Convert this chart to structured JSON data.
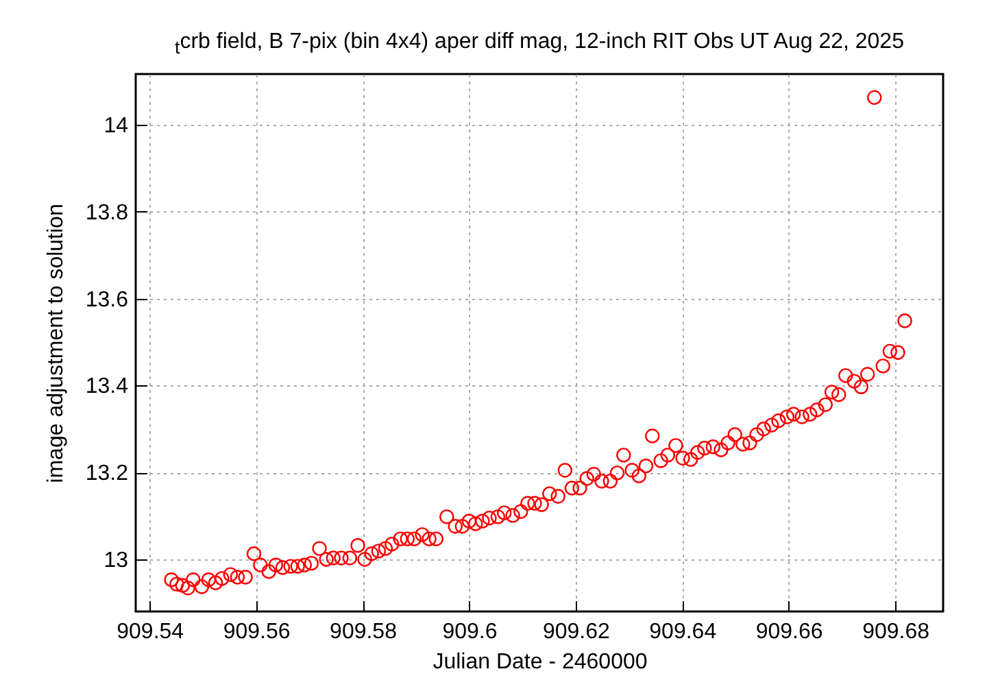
{
  "chart_data": {
    "type": "scatter",
    "title": "$_{t}$crb field, B 7-pix (bin 4x4) aper diff mag,  12-inch RIT Obs UT Aug 22, 2025",
    "xlabel": "Julian Date - 2460000",
    "ylabel": "image adjustment to solution",
    "xlim": [
      909.5374,
      909.689
    ],
    "ylim": [
      12.88,
      14.117
    ],
    "xticks": [
      909.54,
      909.56,
      909.58,
      909.6,
      909.62,
      909.64,
      909.66,
      909.68
    ],
    "yticks": [
      13,
      13.2,
      13.4,
      13.6,
      13.8,
      14
    ],
    "grid": true,
    "marker": "circle",
    "series": [
      {
        "color": "#ff0000",
        "x": [
          909.5441,
          909.5451,
          909.5462,
          909.5472,
          909.5482,
          909.5498,
          909.5511,
          909.5524,
          909.5536,
          909.5552,
          909.5565,
          909.558,
          909.5596,
          909.5608,
          909.5624,
          909.5637,
          909.565,
          909.5665,
          909.5678,
          909.5691,
          909.5704,
          909.5719,
          909.5732,
          909.5745,
          909.576,
          909.5776,
          909.5791,
          909.5804,
          909.5817,
          909.583,
          909.5843,
          909.5855,
          909.5871,
          909.5884,
          909.5897,
          909.5912,
          909.5925,
          909.5938,
          909.5958,
          909.5974,
          909.5987,
          909.6,
          909.6012,
          909.6025,
          909.6038,
          909.6054,
          909.6066,
          909.6082,
          909.6097,
          909.611,
          909.6123,
          909.6136,
          909.6151,
          909.6167,
          909.618,
          909.6193,
          909.6208,
          909.6221,
          909.6234,
          909.6249,
          909.6265,
          909.6278,
          909.629,
          909.6306,
          909.6319,
          909.6332,
          909.6344,
          909.636,
          909.6373,
          909.6388,
          909.6401,
          909.6416,
          909.6429,
          909.6442,
          909.6458,
          909.6473,
          909.6486,
          909.6499,
          909.6514,
          909.6527,
          909.654,
          909.6553,
          909.6568,
          909.6581,
          909.6597,
          909.6609,
          909.6625,
          909.664,
          909.6653,
          909.6669,
          909.6681,
          909.6694,
          909.6707,
          909.6723,
          909.6736,
          909.6748,
          909.6761,
          909.6777,
          909.679,
          909.6805,
          909.6818
        ],
        "values": [
          12.953,
          12.943,
          12.94,
          12.934,
          12.953,
          12.937,
          12.953,
          12.946,
          12.956,
          12.965,
          12.959,
          12.959,
          13.013,
          12.987,
          12.972,
          12.987,
          12.981,
          12.984,
          12.984,
          12.987,
          12.991,
          13.025,
          13.0,
          13.003,
          13.003,
          13.003,
          13.032,
          13.0,
          13.013,
          13.019,
          13.025,
          13.035,
          13.047,
          13.047,
          13.047,
          13.057,
          13.047,
          13.047,
          13.098,
          13.076,
          13.076,
          13.088,
          13.082,
          13.088,
          13.095,
          13.098,
          13.107,
          13.101,
          13.11,
          13.129,
          13.129,
          13.126,
          13.151,
          13.145,
          13.205,
          13.164,
          13.164,
          13.186,
          13.196,
          13.18,
          13.18,
          13.199,
          13.24,
          13.205,
          13.192,
          13.215,
          13.284,
          13.227,
          13.24,
          13.262,
          13.233,
          13.23,
          13.246,
          13.256,
          13.259,
          13.252,
          13.268,
          13.287,
          13.265,
          13.268,
          13.287,
          13.3,
          13.309,
          13.319,
          13.328,
          13.334,
          13.328,
          13.334,
          13.344,
          13.356,
          13.385,
          13.379,
          13.423,
          13.41,
          13.397,
          13.426,
          14.063,
          13.445,
          13.479,
          13.476,
          13.549
        ]
      }
    ]
  }
}
